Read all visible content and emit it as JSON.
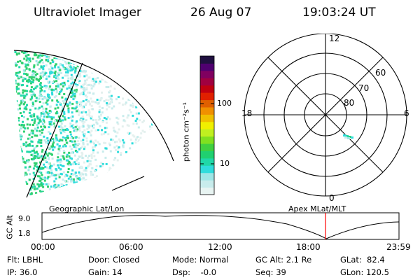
{
  "header": {
    "title": "Ultraviolet Imager",
    "date": "26 Aug 07",
    "time": "19:03:24 UT"
  },
  "colorbar": {
    "unit_label": "photon cm⁻²s⁻¹",
    "ticks": [
      "100",
      "10"
    ],
    "colors": [
      "#e8f4f2",
      "#c8ecec",
      "#9ee6e6",
      "#30dcdc",
      "#20d8a8",
      "#20d070",
      "#40d040",
      "#80e020",
      "#c0f020",
      "#f0f000",
      "#f0c000",
      "#f09000",
      "#e06000",
      "#e02000",
      "#c00010",
      "#a00040",
      "#800060",
      "#500070",
      "#201040"
    ]
  },
  "polar_plot": {
    "mlt_labels": [
      "12",
      "18",
      "6",
      "0"
    ],
    "lat_labels": [
      "60",
      "70",
      "80"
    ]
  },
  "timeline": {
    "left_label": "Geographic Lat/Lon",
    "right_label": "Apex MLat/MLT",
    "y_axis_label": "GC Alt",
    "y_ticks": [
      "9.0",
      "1.8"
    ],
    "x_ticks": [
      "00:00",
      "06:00",
      "12:00",
      "18:00",
      "23:59"
    ],
    "current_time_color": "#ff0000"
  },
  "status": {
    "filter": "Flt: LBHL",
    "door": "Door: Closed",
    "mode": "Mode: Normal",
    "gc_alt": "GC Alt: 2.1 Re",
    "glat": "GLat:  82.4",
    "ip": "IP: 36.0",
    "gain": "Gain: 14",
    "dsp": "Dsp:    -0.0",
    "seq": "Seq: 39",
    "glon": "GLon: 120.5"
  }
}
